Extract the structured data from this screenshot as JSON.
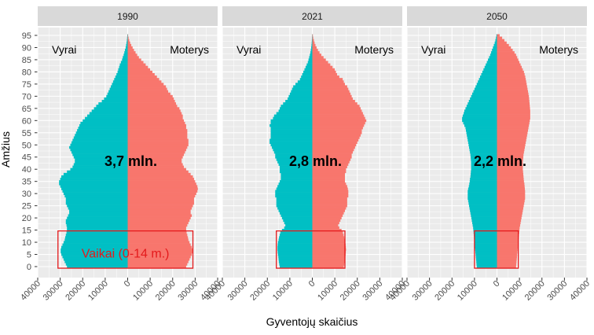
{
  "chart_data": {
    "type": "bar",
    "subtype": "population-pyramid",
    "ylabel": "Amžius",
    "xlabel": "Gyventojų skaičius",
    "y_ticks": [
      "0",
      "5",
      "10",
      "15",
      "20",
      "25",
      "30",
      "35",
      "40",
      "45",
      "50",
      "55",
      "60",
      "65",
      "70",
      "75",
      "80",
      "85",
      "90",
      "95"
    ],
    "x_ticks": [
      "40000",
      "30000",
      "20000",
      "10000",
      "0",
      "10000",
      "20000",
      "30000",
      "40000"
    ],
    "xlim": [
      -40000,
      40000
    ],
    "ylim": [
      0,
      95
    ],
    "colors": {
      "male": "#00BFC4",
      "female": "#F8766D",
      "panel_bg": "#EBEBEB",
      "strip_bg": "#D9D9D9",
      "highlight": "#E41A1C"
    },
    "panels": [
      {
        "year": "1990",
        "left_label": "Vyrai",
        "right_label": "Moterys",
        "total": "3,7 mln.",
        "box_label": "Vaikai (0-14 m.)",
        "male": [
          27000,
          27500,
          28000,
          28500,
          29000,
          29500,
          29800,
          29800,
          29500,
          29000,
          28500,
          28000,
          27800,
          27500,
          27200,
          27000,
          27000,
          27200,
          27500,
          27500,
          27000,
          26500,
          26000,
          26000,
          26500,
          27000,
          27500,
          27500,
          27500,
          28000,
          28500,
          29000,
          29500,
          30000,
          30500,
          30500,
          30000,
          29500,
          28500,
          27000,
          25500,
          24500,
          24000,
          23500,
          23500,
          24000,
          24500,
          25000,
          25500,
          26000,
          25500,
          25000,
          24500,
          24000,
          23500,
          23000,
          22500,
          22000,
          21500,
          21000,
          20000,
          19000,
          18000,
          17000,
          16000,
          15000,
          14000,
          13000,
          11500,
          10500,
          9500,
          9000,
          8500,
          8000,
          7500,
          7000,
          6500,
          6000,
          5500,
          5000,
          4500,
          4200,
          3800,
          3500,
          3000,
          2500,
          2200,
          1800,
          1500,
          1200,
          900,
          700,
          500,
          350,
          250,
          150
        ],
        "female": [
          26000,
          26500,
          27000,
          27500,
          28000,
          28500,
          28800,
          28800,
          28500,
          28000,
          27500,
          27000,
          26800,
          26500,
          26200,
          26000,
          26000,
          26500,
          27000,
          27500,
          28000,
          28500,
          28000,
          28000,
          28500,
          29000,
          29500,
          29500,
          29500,
          30000,
          30500,
          31000,
          31200,
          31000,
          30500,
          30000,
          29500,
          29000,
          28000,
          27000,
          26000,
          25000,
          24500,
          24000,
          24000,
          24500,
          25000,
          25500,
          26000,
          26500,
          27000,
          27000,
          27000,
          26500,
          26500,
          26500,
          26500,
          26000,
          26000,
          25500,
          25000,
          24500,
          24500,
          24000,
          23500,
          23000,
          22000,
          21500,
          21000,
          20500,
          20000,
          19000,
          18000,
          17500,
          17000,
          16000,
          15000,
          14000,
          13000,
          12000,
          11000,
          10000,
          9000,
          8000,
          7000,
          6000,
          5000,
          4200,
          3500,
          2800,
          2200,
          1600,
          1100,
          700,
          400,
          200
        ],
        "box": {
          "from_age": 0,
          "to_age": 14,
          "male": 31000,
          "female": 29000
        }
      },
      {
        "year": "2021",
        "left_label": "Vyrai",
        "right_label": "Moterys",
        "total": "2,8 mln.",
        "box_label": "",
        "male": [
          14500,
          14700,
          14900,
          15000,
          15100,
          15300,
          15400,
          15500,
          15500,
          15400,
          15300,
          15000,
          14800,
          14500,
          14200,
          13500,
          12500,
          12000,
          12500,
          13000,
          13500,
          14000,
          14500,
          15000,
          15500,
          16000,
          16000,
          16000,
          16000,
          16500,
          16500,
          16500,
          16000,
          15500,
          15000,
          14500,
          14000,
          14000,
          14000,
          14500,
          14500,
          14500,
          15000,
          15500,
          16000,
          16500,
          16500,
          17000,
          17500,
          18000,
          18500,
          19000,
          19000,
          18500,
          18500,
          18500,
          18500,
          18500,
          19000,
          18500,
          18500,
          17500,
          17000,
          16000,
          15000,
          14500,
          14000,
          13000,
          12000,
          11000,
          10500,
          10000,
          9500,
          9000,
          8500,
          7500,
          6500,
          5500,
          5000,
          4500,
          4000,
          3500,
          3000,
          2500,
          2000,
          1700,
          1400,
          1100,
          850,
          650,
          500,
          380,
          280,
          200,
          150,
          100
        ],
        "female": [
          14000,
          14200,
          14400,
          14600,
          14700,
          14800,
          14900,
          15000,
          14900,
          14800,
          14600,
          14400,
          14200,
          13900,
          13600,
          13000,
          12000,
          11500,
          12000,
          12500,
          13000,
          13500,
          14000,
          14500,
          15000,
          15500,
          15500,
          15500,
          15500,
          16000,
          16000,
          16000,
          15800,
          15500,
          15000,
          14500,
          14500,
          14500,
          14500,
          15000,
          15000,
          15500,
          16000,
          16500,
          17000,
          17500,
          17500,
          18000,
          18500,
          19000,
          19500,
          20000,
          20500,
          21000,
          21500,
          22000,
          22000,
          22500,
          23000,
          23500,
          24000,
          23500,
          23000,
          22500,
          22000,
          21500,
          21000,
          20000,
          19000,
          18000,
          17500,
          17000,
          16500,
          16000,
          15500,
          14500,
          14000,
          13500,
          12000,
          11000,
          10500,
          10000,
          9000,
          8000,
          7000,
          6000,
          5000,
          4000,
          3200,
          2500,
          1900,
          1400,
          1000,
          700,
          400,
          250
        ],
        "box": {
          "from_age": 0,
          "to_age": 14,
          "male": 16000,
          "female": 14500
        }
      },
      {
        "year": "2050",
        "left_label": "Vyrai",
        "right_label": "Moterys",
        "total": "2,2 mln.",
        "box_label": "",
        "male": [
          9000,
          9100,
          9200,
          9300,
          9400,
          9500,
          9600,
          9700,
          9800,
          9900,
          10000,
          10100,
          10200,
          10300,
          10400,
          10500,
          10600,
          10800,
          11000,
          11200,
          11400,
          11600,
          11800,
          12000,
          12200,
          12400,
          12600,
          12800,
          13000,
          13000,
          13000,
          13000,
          12800,
          12500,
          12300,
          12100,
          12000,
          11800,
          11700,
          11600,
          11500,
          11500,
          11500,
          11500,
          11600,
          11700,
          11800,
          12000,
          12200,
          12400,
          12600,
          12800,
          13000,
          13200,
          13400,
          13600,
          13800,
          14000,
          14500,
          15000,
          15500,
          15500,
          15200,
          14800,
          14500,
          14000,
          13500,
          13000,
          12500,
          12000,
          11500,
          11000,
          10500,
          10000,
          9500,
          9000,
          8500,
          8000,
          7500,
          7000,
          6500,
          6000,
          5500,
          5000,
          4500,
          4000,
          3500,
          3000,
          2600,
          2200,
          1800,
          1400,
          1000,
          700,
          450,
          250
        ],
        "female": [
          8500,
          8600,
          8700,
          8800,
          8900,
          9000,
          9100,
          9200,
          9300,
          9400,
          9500,
          9600,
          9700,
          9800,
          9900,
          10000,
          10100,
          10300,
          10500,
          10700,
          10900,
          11100,
          11300,
          11500,
          11700,
          11900,
          12100,
          12300,
          12500,
          12500,
          12500,
          12500,
          12400,
          12300,
          12200,
          12000,
          11900,
          11800,
          11700,
          11600,
          11500,
          11500,
          11500,
          11500,
          11600,
          11700,
          11800,
          12000,
          12200,
          12400,
          12600,
          12800,
          13000,
          13200,
          13400,
          13600,
          13800,
          14000,
          14200,
          14400,
          14600,
          14800,
          14800,
          14800,
          14800,
          14700,
          14600,
          14500,
          14400,
          14300,
          14200,
          14000,
          13800,
          13600,
          13400,
          13200,
          13000,
          12800,
          12600,
          12300,
          12000,
          11500,
          11000,
          10500,
          10000,
          9500,
          9000,
          8500,
          7800,
          7000,
          6200,
          5300,
          4300,
          3300,
          2300,
          1200
        ],
        "box": {
          "from_age": 0,
          "to_age": 14,
          "male": 10000,
          "female": 9500
        }
      }
    ]
  }
}
